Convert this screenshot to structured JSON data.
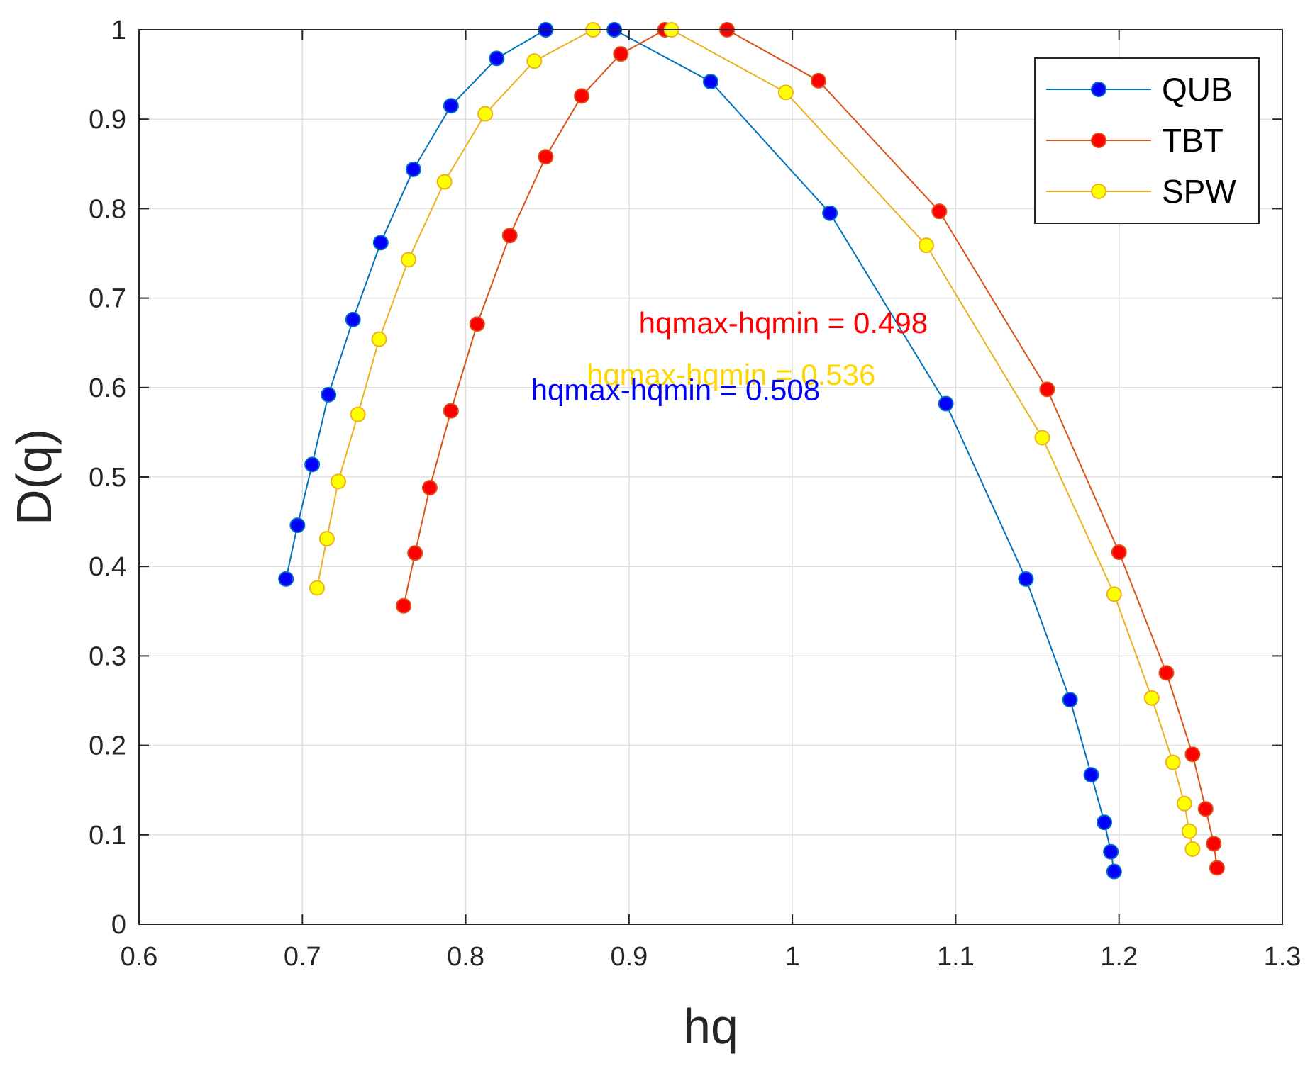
{
  "chart_data": {
    "type": "line",
    "xlabel": "hq",
    "ylabel": "D(q)",
    "xlim": [
      0.6,
      1.3
    ],
    "ylim": [
      0,
      1
    ],
    "xticks": [
      0.6,
      0.7,
      0.8,
      0.9,
      1.0,
      1.1,
      1.2,
      1.3
    ],
    "xtick_labels": [
      "0.6",
      "0.7",
      "0.8",
      "0.9",
      "1",
      "1.1",
      "1.2",
      "1.3"
    ],
    "yticks": [
      0,
      0.1,
      0.2,
      0.3,
      0.4,
      0.5,
      0.6,
      0.7,
      0.8,
      0.9,
      1.0
    ],
    "ytick_labels": [
      "0",
      "0.1",
      "0.2",
      "0.3",
      "0.4",
      "0.5",
      "0.6",
      "0.7",
      "0.8",
      "0.9",
      "1"
    ],
    "grid": true,
    "legend_position": "top-right",
    "series": [
      {
        "name": "QUB",
        "line_color": "#0072BD",
        "marker_color": "#0000FF",
        "x": [
          0.69,
          0.697,
          0.706,
          0.716,
          0.731,
          0.748,
          0.768,
          0.791,
          0.819,
          0.849,
          0.891,
          0.95,
          1.023,
          1.094,
          1.143,
          1.17,
          1.183,
          1.191,
          1.195,
          1.197
        ],
        "y": [
          0.386,
          0.446,
          0.514,
          0.592,
          0.676,
          0.762,
          0.844,
          0.915,
          0.968,
          1.0,
          1.0,
          0.942,
          0.795,
          0.582,
          0.386,
          0.251,
          0.167,
          0.114,
          0.081,
          0.059
        ]
      },
      {
        "name": "TBT",
        "line_color": "#D95319",
        "marker_color": "#FF0000",
        "x": [
          0.762,
          0.769,
          0.778,
          0.791,
          0.807,
          0.827,
          0.849,
          0.871,
          0.895,
          0.922,
          0.96,
          1.016,
          1.09,
          1.156,
          1.2,
          1.229,
          1.245,
          1.253,
          1.258,
          1.26
        ],
        "y": [
          0.356,
          0.415,
          0.488,
          0.574,
          0.671,
          0.77,
          0.858,
          0.926,
          0.973,
          1.0,
          1.0,
          0.943,
          0.797,
          0.598,
          0.416,
          0.281,
          0.19,
          0.129,
          0.09,
          0.063
        ]
      },
      {
        "name": "SPW",
        "line_color": "#EDB120",
        "marker_color": "#FFFF00",
        "x": [
          0.709,
          0.715,
          0.722,
          0.734,
          0.747,
          0.765,
          0.787,
          0.812,
          0.842,
          0.878,
          0.926,
          0.996,
          1.082,
          1.153,
          1.197,
          1.22,
          1.233,
          1.24,
          1.243,
          1.245
        ],
        "y": [
          0.376,
          0.431,
          0.495,
          0.57,
          0.654,
          0.743,
          0.83,
          0.906,
          0.965,
          1.0,
          1.0,
          0.93,
          0.759,
          0.544,
          0.369,
          0.253,
          0.181,
          0.135,
          0.104,
          0.084
        ]
      }
    ],
    "annotations": [
      {
        "text": "hqmax-hqmin = 0.498",
        "color": "#FF0000",
        "x": 0.906,
        "y": 0.661
      },
      {
        "text": "hqmax-hqmin = 0.536",
        "color": "#FFD700",
        "x": 0.874,
        "y": 0.603
      },
      {
        "text": "hqmax-hqmin = 0.508",
        "color": "#0000FF",
        "x": 0.84,
        "y": 0.586
      }
    ]
  }
}
